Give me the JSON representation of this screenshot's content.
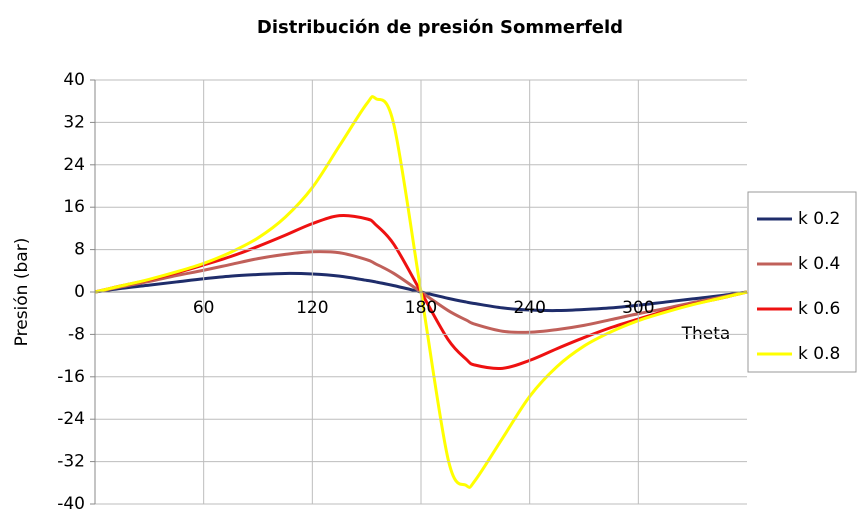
{
  "chart_data": {
    "type": "line",
    "title": "Distribución de presión Sommerfeld",
    "x_label": "Theta",
    "y_label": "Presión (bar)",
    "x": [
      0,
      15,
      30,
      45,
      60,
      75,
      90,
      105,
      120,
      135,
      150,
      155,
      165,
      180,
      195,
      205,
      210,
      225,
      240,
      255,
      270,
      285,
      300,
      315,
      330,
      345,
      360
    ],
    "series": [
      {
        "name": "k 0.2",
        "color": "#1f2d6b",
        "values": [
          0,
          0.7,
          1.3,
          1.9,
          2.5,
          3.0,
          3.3,
          3.5,
          3.4,
          3.0,
          2.2,
          1.9,
          1.2,
          0,
          -1.2,
          -1.9,
          -2.2,
          -3.0,
          -3.4,
          -3.5,
          -3.3,
          -3.0,
          -2.5,
          -1.9,
          -1.3,
          -0.7,
          0
        ]
      },
      {
        "name": "k 0.4",
        "color": "#c0605a",
        "values": [
          0,
          1.0,
          2.0,
          3.1,
          4.1,
          5.2,
          6.3,
          7.1,
          7.6,
          7.4,
          6.1,
          5.3,
          3.5,
          0,
          -3.5,
          -5.3,
          -6.1,
          -7.4,
          -7.6,
          -7.1,
          -6.3,
          -5.2,
          -4.1,
          -3.1,
          -2.0,
          -1.0,
          0
        ]
      },
      {
        "name": "k 0.6",
        "color": "#ee1111",
        "values": [
          0,
          1.2,
          2.3,
          3.6,
          5.1,
          6.7,
          8.6,
          10.7,
          12.9,
          14.4,
          13.8,
          12.7,
          9.0,
          0,
          -9.0,
          -12.7,
          -13.8,
          -14.4,
          -12.9,
          -10.7,
          -8.6,
          -6.7,
          -5.1,
          -3.6,
          -2.3,
          -1.2,
          0
        ]
      },
      {
        "name": "k 0.8",
        "color": "#ffff00",
        "values": [
          0,
          1.2,
          2.4,
          3.8,
          5.4,
          7.5,
          10.2,
          14.1,
          19.7,
          27.6,
          35.5,
          36.5,
          31.6,
          0,
          -31.6,
          -36.5,
          -35.5,
          -27.6,
          -19.7,
          -14.1,
          -10.2,
          -7.5,
          -5.4,
          -3.8,
          -2.4,
          -1.2,
          0
        ]
      }
    ],
    "xlim": [
      0,
      360
    ],
    "xticks": [
      60,
      120,
      180,
      240,
      300
    ],
    "ylim": [
      -40,
      40
    ],
    "yticks": [
      40,
      32,
      24,
      16,
      8,
      0,
      -8,
      -16,
      -24,
      -32,
      -40
    ],
    "grid": true,
    "legend": "right"
  }
}
